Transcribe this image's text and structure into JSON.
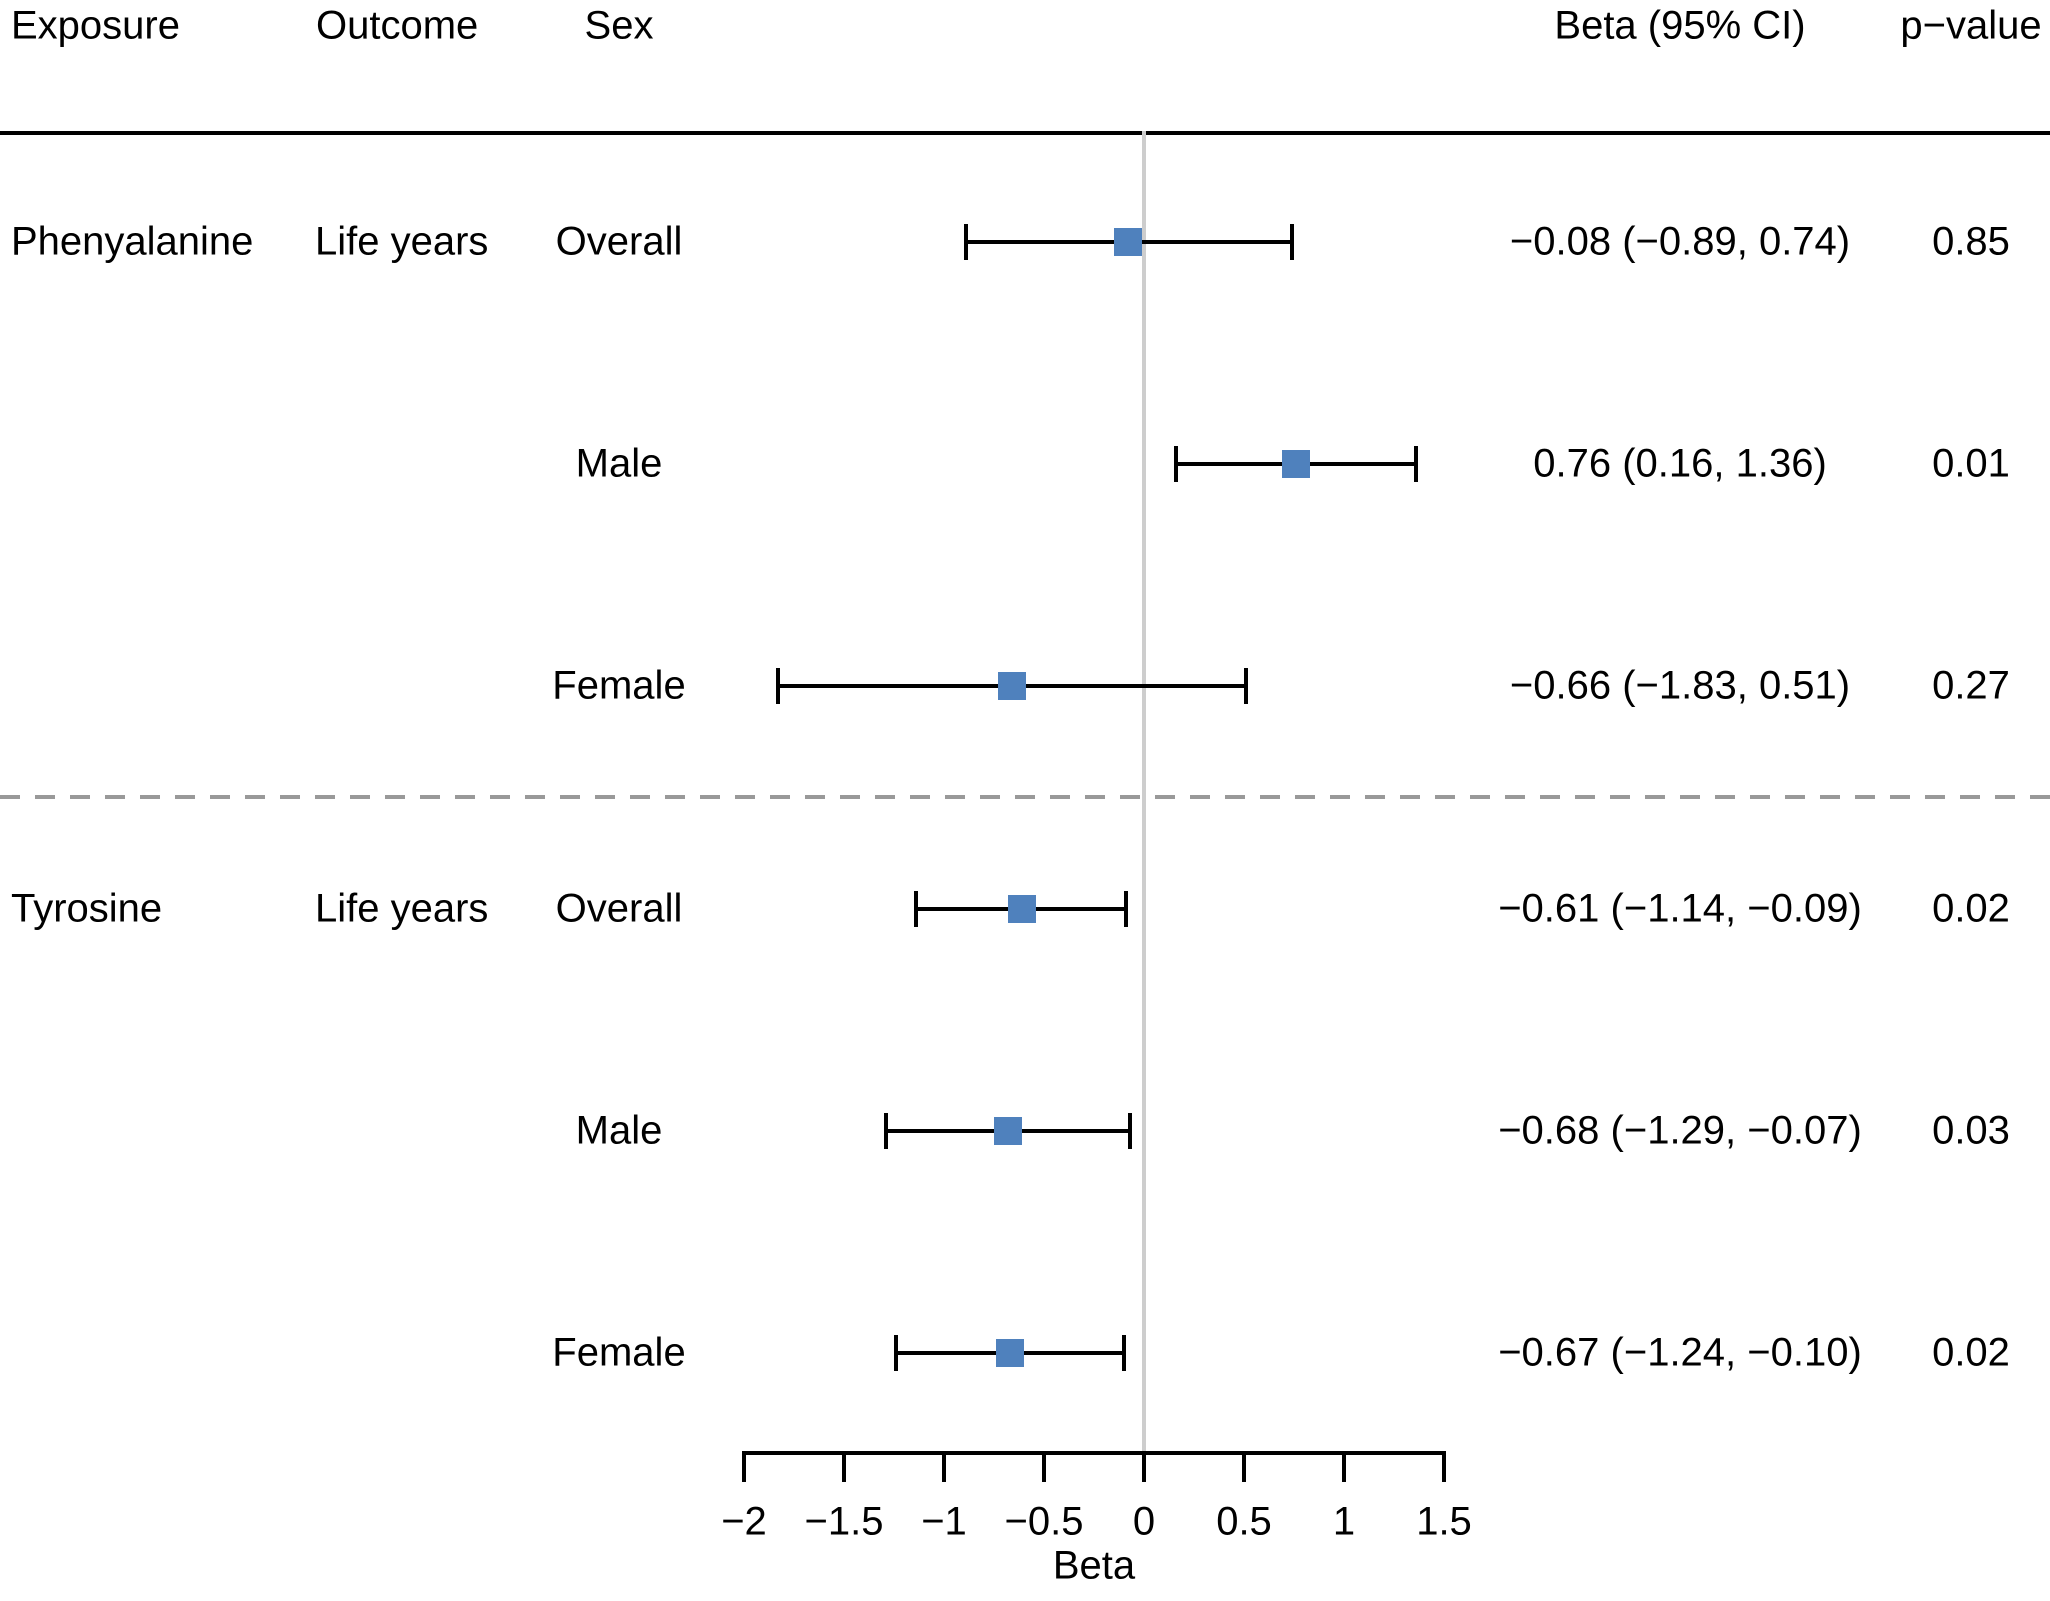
{
  "header": {
    "exposure": "Exposure",
    "outcome": "Outcome",
    "sex": "Sex",
    "beta_ci": "Beta (95% CI)",
    "p_value": "p−value"
  },
  "chart_data": {
    "type": "forest",
    "xlabel": "Beta",
    "xlim": [
      -2,
      1.5
    ],
    "grid": false,
    "reference_line_x": 0,
    "x_ticks": [
      {
        "value": -2,
        "label": "−2"
      },
      {
        "value": -1.5,
        "label": "−1.5"
      },
      {
        "value": -1,
        "label": "−1"
      },
      {
        "value": -0.5,
        "label": "−0.5"
      },
      {
        "value": 0,
        "label": "0"
      },
      {
        "value": 0.5,
        "label": "0.5"
      },
      {
        "value": 1,
        "label": "1"
      },
      {
        "value": 1.5,
        "label": "1.5"
      }
    ],
    "rows": [
      {
        "exposure": "Phenyalanine",
        "outcome": "Life years",
        "sex": "Overall",
        "beta": -0.08,
        "ci_low": -0.89,
        "ci_high": 0.74,
        "beta_ci_text": "−0.08 (−0.89, 0.74)",
        "p_value": "0.85"
      },
      {
        "exposure": "",
        "outcome": "",
        "sex": "Male",
        "beta": 0.76,
        "ci_low": 0.16,
        "ci_high": 1.36,
        "beta_ci_text": "0.76 (0.16, 1.36)",
        "p_value": "0.01"
      },
      {
        "exposure": "",
        "outcome": "",
        "sex": "Female",
        "beta": -0.66,
        "ci_low": -1.83,
        "ci_high": 0.51,
        "beta_ci_text": "−0.66 (−1.83, 0.51)",
        "p_value": "0.27"
      },
      {
        "exposure": "Tyrosine",
        "outcome": "Life years",
        "sex": "Overall",
        "beta": -0.61,
        "ci_low": -1.14,
        "ci_high": -0.09,
        "beta_ci_text": "−0.61 (−1.14, −0.09)",
        "p_value": "0.02"
      },
      {
        "exposure": "",
        "outcome": "",
        "sex": "Male",
        "beta": -0.68,
        "ci_low": -1.29,
        "ci_high": -0.07,
        "beta_ci_text": "−0.68 (−1.29, −0.07)",
        "p_value": "0.03"
      },
      {
        "exposure": "",
        "outcome": "",
        "sex": "Female",
        "beta": -0.67,
        "ci_low": -1.24,
        "ci_high": -0.1,
        "beta_ci_text": "−0.67 (−1.24, −0.10)",
        "p_value": "0.02"
      }
    ],
    "separator_after_row": 3,
    "colors": {
      "marker": "#4f81bd",
      "reference_line": "#cdcdcd",
      "separator": "#999999",
      "text": "#000000"
    }
  }
}
